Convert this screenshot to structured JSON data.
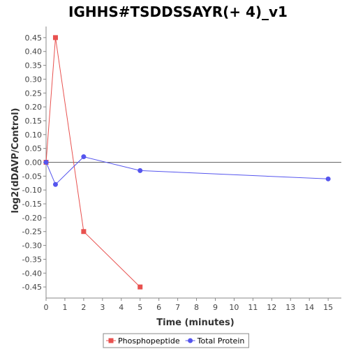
{
  "chart_data": {
    "type": "line",
    "title": "IGHHS#TSDDSSAYR(+ 4)_v1",
    "xlabel": "Time (minutes)",
    "ylabel": "log2(dDAVP/Control)",
    "xlim": [
      0,
      15.7
    ],
    "ylim": [
      -0.49,
      0.49
    ],
    "x_ticks": [
      0,
      1,
      2,
      3,
      4,
      5,
      6,
      7,
      8,
      9,
      10,
      11,
      12,
      13,
      14,
      15
    ],
    "x_tick_labels": [
      "0",
      "1",
      "2",
      "3",
      "4",
      "5",
      "6",
      "7",
      "8",
      "9",
      "10",
      "11",
      "12",
      "13",
      "14",
      "15"
    ],
    "y_ticks": [
      0.45,
      0.4,
      0.35,
      0.3,
      0.25,
      0.2,
      0.15,
      0.1,
      0.05,
      0.0,
      -0.05,
      -0.1,
      -0.15,
      -0.2,
      -0.25,
      -0.3,
      -0.35,
      -0.4,
      -0.45
    ],
    "y_tick_labels": [
      "0.45",
      "0.40",
      "0.35",
      "0.30",
      "0.25",
      "0.20",
      "0.15",
      "0.10",
      "0.05",
      "0.00",
      "-0.05",
      "-0.10",
      "-0.15",
      "-0.20",
      "-0.25",
      "-0.30",
      "-0.35",
      "-0.40",
      "-0.45"
    ],
    "grid": false,
    "zero_line": true,
    "legend_position": "bottom",
    "series": [
      {
        "name": "Phosphopeptide",
        "marker": "square",
        "color": "#e8514f",
        "points": [
          [
            0,
            0.0
          ],
          [
            0.5,
            0.45
          ],
          [
            2,
            -0.25
          ],
          [
            5,
            -0.45
          ]
        ]
      },
      {
        "name": "Total Protein",
        "marker": "circle",
        "color": "#5555ee",
        "points": [
          [
            0,
            0.0
          ],
          [
            0.5,
            -0.08
          ],
          [
            2,
            0.02
          ],
          [
            5,
            -0.03
          ],
          [
            15,
            -0.06
          ]
        ]
      }
    ]
  }
}
